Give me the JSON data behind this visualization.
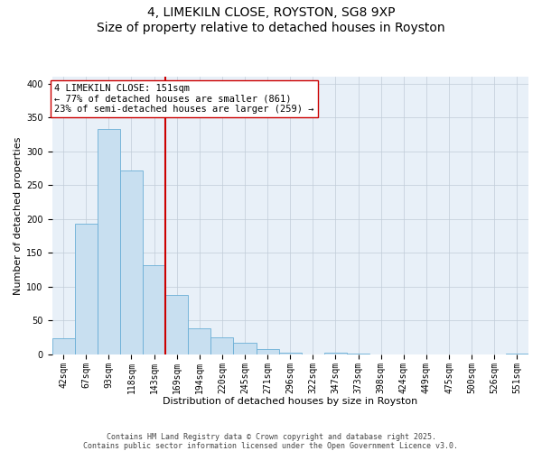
{
  "title": "4, LIMEKILN CLOSE, ROYSTON, SG8 9XP",
  "subtitle": "Size of property relative to detached houses in Royston",
  "xlabel": "Distribution of detached houses by size in Royston",
  "ylabel": "Number of detached properties",
  "bin_labels": [
    "42sqm",
    "67sqm",
    "93sqm",
    "118sqm",
    "143sqm",
    "169sqm",
    "194sqm",
    "220sqm",
    "245sqm",
    "271sqm",
    "296sqm",
    "322sqm",
    "347sqm",
    "373sqm",
    "398sqm",
    "424sqm",
    "449sqm",
    "475sqm",
    "500sqm",
    "526sqm",
    "551sqm"
  ],
  "bar_heights": [
    24,
    193,
    333,
    272,
    132,
    88,
    38,
    25,
    17,
    8,
    3,
    0,
    2,
    1,
    0,
    0,
    0,
    0,
    0,
    0,
    1
  ],
  "bar_color": "#c8dff0",
  "bar_edge_color": "#6aaed6",
  "vline_color": "#cc0000",
  "vline_x_index": 4,
  "ylim": [
    0,
    410
  ],
  "yticks": [
    0,
    50,
    100,
    150,
    200,
    250,
    300,
    350,
    400
  ],
  "annotation_text": "4 LIMEKILN CLOSE: 151sqm\n← 77% of detached houses are smaller (861)\n23% of semi-detached houses are larger (259) →",
  "annotation_box_edgecolor": "#cc0000",
  "footer_line1": "Contains HM Land Registry data © Crown copyright and database right 2025.",
  "footer_line2": "Contains public sector information licensed under the Open Government Licence v3.0.",
  "title_fontsize": 10,
  "subtitle_fontsize": 8.5,
  "axis_label_fontsize": 8,
  "tick_fontsize": 7,
  "annotation_fontsize": 7.5,
  "footer_fontsize": 6,
  "plot_bg_color": "#e8f0f8"
}
